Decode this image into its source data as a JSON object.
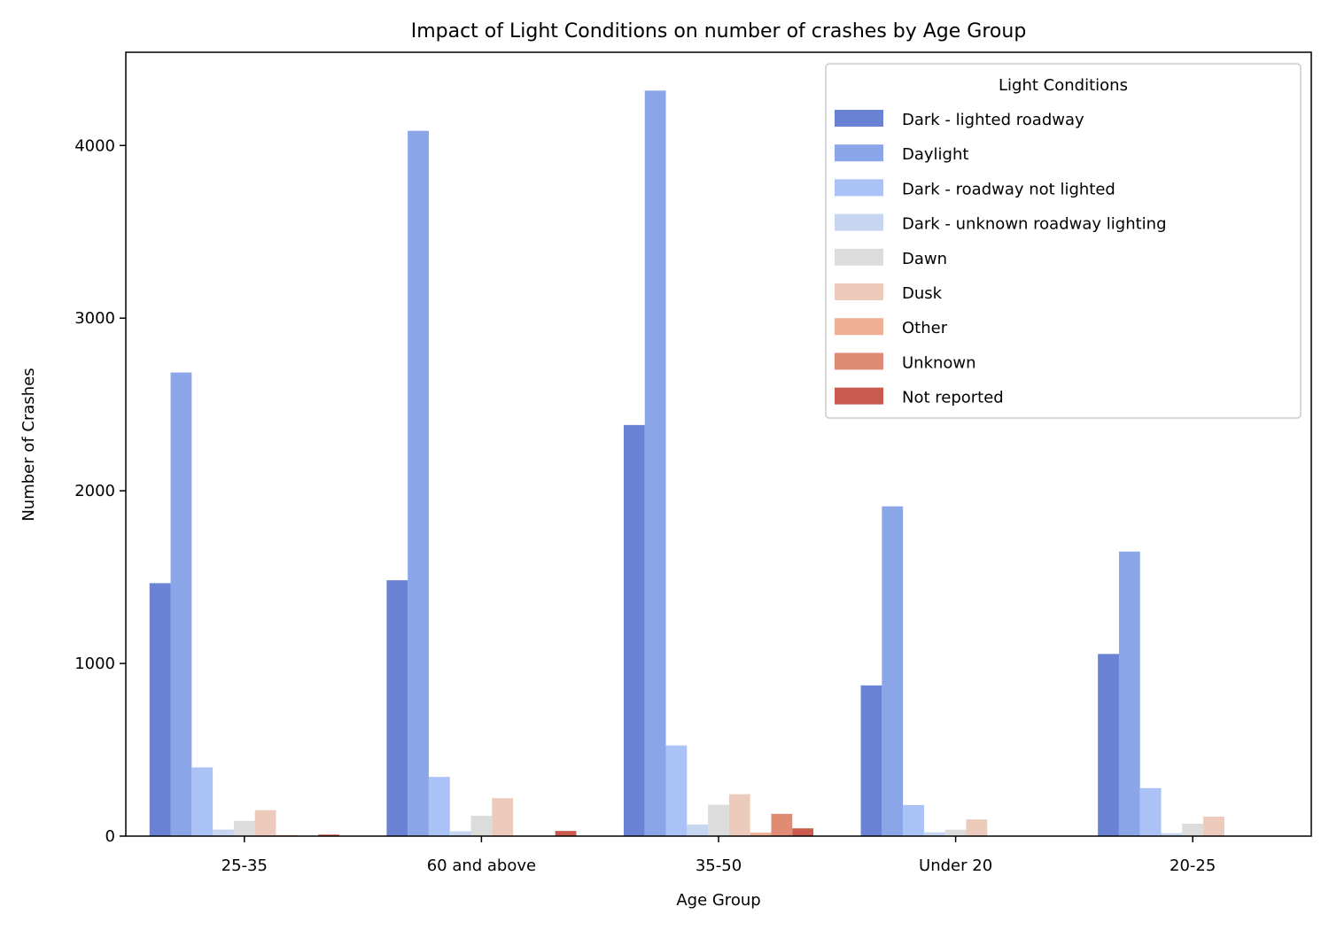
{
  "chart_data": {
    "type": "bar",
    "title": "Impact of Light Conditions on number of crashes by Age Group",
    "xlabel": "Age Group",
    "ylabel": "Number of Crashes",
    "ylim": [
      0,
      4540
    ],
    "yticks": [
      0,
      1000,
      2000,
      3000,
      4000
    ],
    "categories": [
      "25-35",
      "60 and above",
      "35-50",
      "Under 20",
      "20-25"
    ],
    "legend": {
      "title": "Light Conditions",
      "placement": "top-right"
    },
    "grid": false,
    "series": [
      {
        "name": "Dark - lighted roadway",
        "color": "#6a82d4",
        "values": [
          1465,
          1482,
          2381,
          873,
          1055
        ]
      },
      {
        "name": "Daylight",
        "color": "#8aa6e8",
        "values": [
          2685,
          4085,
          4318,
          1910,
          1648
        ]
      },
      {
        "name": "Dark - roadway not lighted",
        "color": "#aac2f5",
        "values": [
          398,
          343,
          525,
          180,
          278
        ]
      },
      {
        "name": "Dark - unknown roadway lighting",
        "color": "#c6d6f0",
        "values": [
          38,
          28,
          67,
          22,
          17
        ]
      },
      {
        "name": "Dawn",
        "color": "#dcdcdc",
        "values": [
          88,
          118,
          182,
          37,
          72
        ]
      },
      {
        "name": "Dusk",
        "color": "#eccbbd",
        "values": [
          150,
          220,
          243,
          97,
          113
        ]
      },
      {
        "name": "Other",
        "color": "#eeb095",
        "values": [
          6,
          0,
          20,
          0,
          0
        ]
      },
      {
        "name": "Unknown",
        "color": "#e08c74",
        "values": [
          0,
          0,
          129,
          0,
          0
        ]
      },
      {
        "name": "Not reported",
        "color": "#c95a4d",
        "values": [
          9,
          30,
          45,
          0,
          0
        ]
      }
    ]
  }
}
